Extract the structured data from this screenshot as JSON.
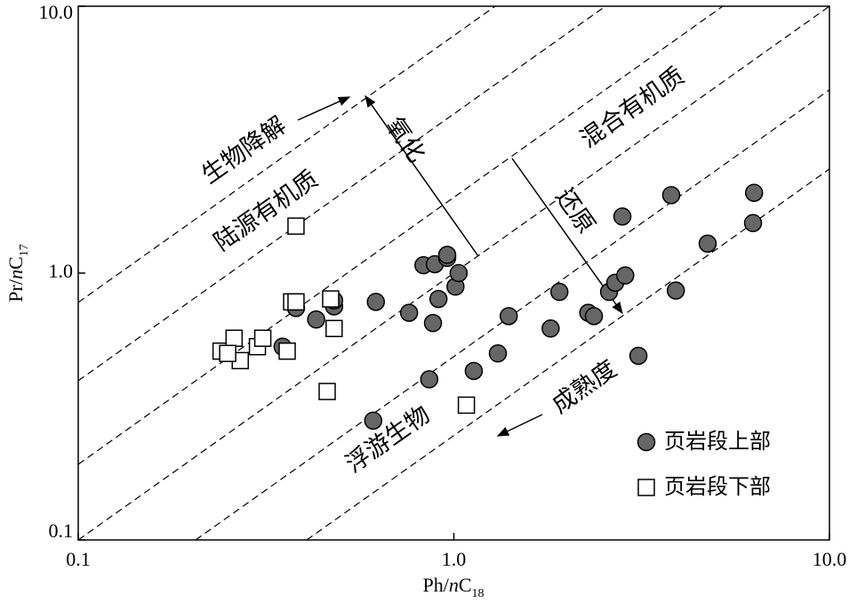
{
  "chart_data": {
    "type": "scatter",
    "x_label": "Ph/nC18",
    "y_label": "Pr/nC17",
    "xlog": true,
    "ylog": true,
    "xlim": [
      0.1,
      10
    ],
    "ylim": [
      0.1,
      10
    ],
    "xticks": [
      0.1,
      {
        "value": 1,
        "label": "1.0"
      },
      {
        "value": 10,
        "label": "10.0"
      }
    ],
    "yticks": [
      0.1,
      {
        "value": 1,
        "label": "1.0"
      },
      {
        "value": 10,
        "label": "10.0"
      }
    ],
    "legend": "lower right",
    "annotations": [
      "生物降解",
      "陆源有机质",
      "氧化",
      "混合有机质",
      "还原",
      "浮游生物",
      "成熟度"
    ],
    "series": [
      {
        "name": "页岩段上部",
        "marker": "circle",
        "color": "#666666",
        "x": [
          0.62,
          0.76,
          0.88,
          0.91,
          0.83,
          0.89,
          0.96,
          0.96,
          1.01,
          1.03,
          0.61,
          0.86,
          1.13,
          1.31,
          1.4,
          1.81,
          1.91,
          2.28,
          2.36,
          2.59,
          2.69,
          2.86,
          2.81,
          3.79,
          3.9,
          4.74,
          3.1,
          6.26,
          6.3,
          0.38,
          0.43,
          0.48,
          0.48,
          0.35
        ],
        "y": [
          0.78,
          0.71,
          0.65,
          0.8,
          1.07,
          1.08,
          1.14,
          1.17,
          0.89,
          1.0,
          0.28,
          0.4,
          0.43,
          0.5,
          0.69,
          0.62,
          0.85,
          0.71,
          0.69,
          0.85,
          0.92,
          0.98,
          1.63,
          1.96,
          0.86,
          1.29,
          0.49,
          1.54,
          2.0,
          0.74,
          0.67,
          0.75,
          0.79,
          0.53
        ]
      },
      {
        "name": "页岩段下部",
        "marker": "square",
        "color": "#ffffff",
        "x": [
          0.38,
          0.24,
          0.26,
          0.27,
          0.3,
          0.31,
          0.36,
          0.37,
          0.38,
          0.47,
          0.48,
          0.46,
          1.08,
          0.25
        ],
        "y": [
          1.5,
          0.51,
          0.57,
          0.47,
          0.53,
          0.57,
          0.51,
          0.78,
          0.78,
          0.8,
          0.62,
          0.36,
          0.32,
          0.5
        ]
      }
    ]
  }
}
